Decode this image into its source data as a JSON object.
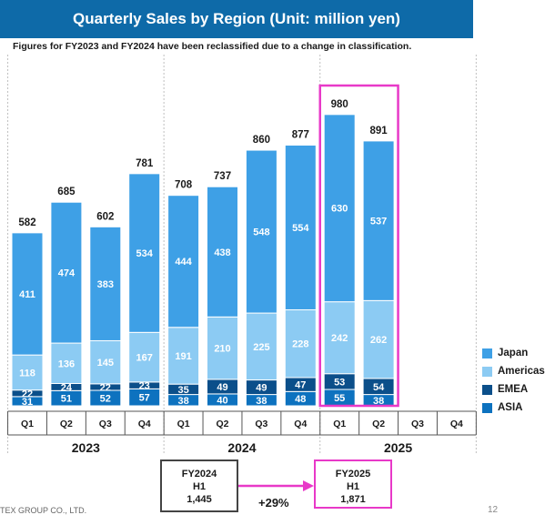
{
  "title": "Quarterly Sales by Region (Unit: million yen)",
  "note": "Figures for FY2023 and FY2024 have been reclassified due to a change in classification.",
  "colors": {
    "title_bg": "#0e6aa8",
    "Japan": "#3ea0e6",
    "Americas": "#8ccbf3",
    "EMEA": "#0b4f8a",
    "ASIA": "#0d72bf",
    "highlight": "#e839c8"
  },
  "chart_data": {
    "type": "bar",
    "stacked": true,
    "categories": [
      "Q1",
      "Q2",
      "Q3",
      "Q4",
      "Q1",
      "Q2",
      "Q3",
      "Q4",
      "Q1",
      "Q2",
      "Q3",
      "Q4"
    ],
    "years": [
      {
        "label": "2023",
        "quarters": [
          "Q1",
          "Q2",
          "Q3",
          "Q4"
        ]
      },
      {
        "label": "2024",
        "quarters": [
          "Q1",
          "Q2",
          "Q3",
          "Q4"
        ]
      },
      {
        "label": "2025",
        "quarters": [
          "Q1",
          "Q2",
          "Q3",
          "Q4"
        ]
      }
    ],
    "series": [
      {
        "name": "ASIA",
        "values": [
          31,
          51,
          52,
          57,
          38,
          40,
          38,
          48,
          55,
          38,
          null,
          null
        ]
      },
      {
        "name": "EMEA",
        "values": [
          22,
          24,
          22,
          23,
          35,
          49,
          49,
          47,
          53,
          54,
          null,
          null
        ]
      },
      {
        "name": "Americas",
        "values": [
          118,
          136,
          145,
          167,
          191,
          210,
          225,
          228,
          242,
          262,
          null,
          null
        ]
      },
      {
        "name": "Japan",
        "values": [
          411,
          474,
          383,
          534,
          444,
          438,
          548,
          554,
          630,
          537,
          null,
          null
        ]
      }
    ],
    "totals": [
      582,
      685,
      602,
      781,
      708,
      737,
      860,
      877,
      980,
      891,
      null,
      null
    ],
    "legend": [
      "Japan",
      "Americas",
      "EMEA",
      "ASIA"
    ],
    "legend_position": "right",
    "highlighted": [
      "2025 Q1",
      "2025 Q2"
    ]
  },
  "fy2024": {
    "line1": "FY2024",
    "line2": "H1",
    "line3": "1,445"
  },
  "fy2025": {
    "line1": "FY2025",
    "line2": "H1",
    "line3": "1,871"
  },
  "growth": "+29%",
  "footer_company": "TEX GROUP CO., LTD.",
  "page_number": "12"
}
